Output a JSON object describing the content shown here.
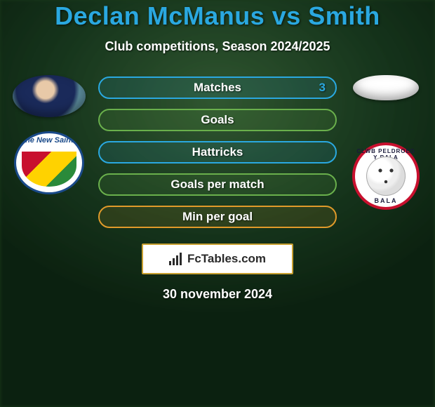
{
  "title": "Declan McManus vs Smith",
  "subtitle": "Club competitions, Season 2024/2025",
  "colors": {
    "title": "#2aa8e0",
    "blue": "#2aa8e0",
    "green": "#6ab04c",
    "orange": "#e09a2a",
    "brand_border": "#c8a030"
  },
  "left": {
    "club_text": "The New Saints"
  },
  "right": {
    "club_ring_top": "CLWB PELDROED Y BALA",
    "club_ring_bottom": "BALA"
  },
  "stats": [
    {
      "label": "Matches",
      "style": "blue",
      "right_value": "3"
    },
    {
      "label": "Goals",
      "style": "green"
    },
    {
      "label": "Hattricks",
      "style": "blue"
    },
    {
      "label": "Goals per match",
      "style": "green"
    },
    {
      "label": "Min per goal",
      "style": "orange"
    }
  ],
  "brand": "FcTables.com",
  "date": "30 november 2024"
}
